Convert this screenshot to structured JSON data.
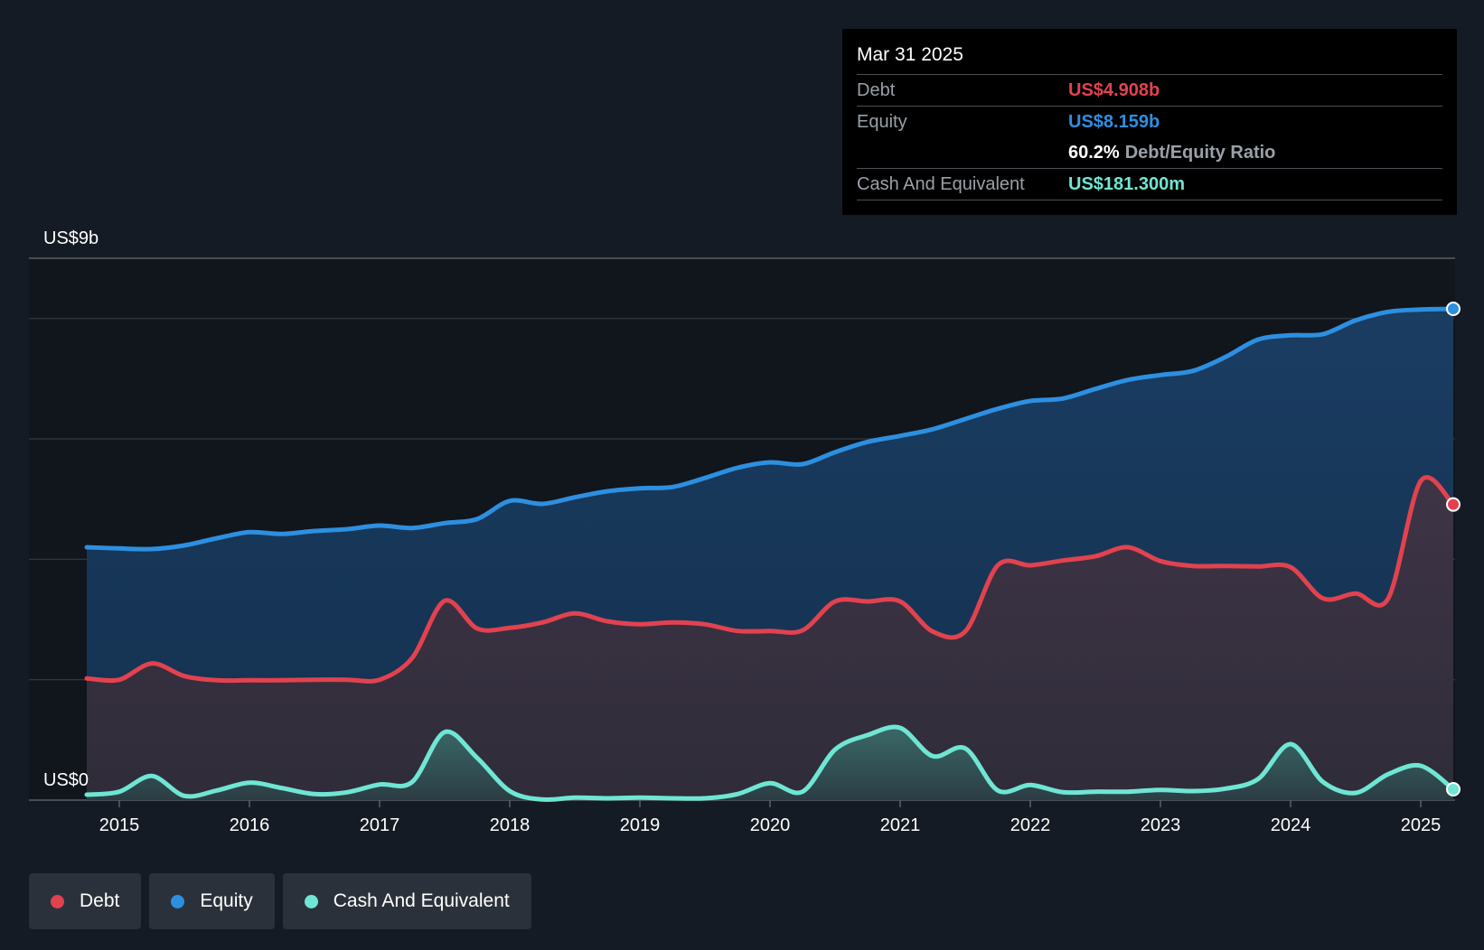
{
  "colors": {
    "background": "#151b24",
    "plot_background": "#11151c",
    "debt": "#e2424f",
    "equity": "#2d8fe0",
    "cash": "#6fe6d3",
    "grid": "#2e343c"
  },
  "tooltip": {
    "date": "Mar 31 2025",
    "debt_label": "Debt",
    "debt_value": "US$4.908b",
    "equity_label": "Equity",
    "equity_value": "US$8.159b",
    "ratio_value": "60.2%",
    "ratio_label": "Debt/Equity Ratio",
    "cash_label": "Cash And Equivalent",
    "cash_value": "US$181.300m"
  },
  "legend": {
    "debt": "Debt",
    "equity": "Equity",
    "cash": "Cash And Equivalent"
  },
  "chart_data": {
    "type": "area",
    "title": "",
    "xlabel": "",
    "ylabel": "",
    "ylim": [
      0,
      9
    ],
    "y_unit": "US$ billions",
    "y_tick_labels": {
      "top": "US$9b",
      "bottom": "US$0"
    },
    "y_gridlines": [
      0,
      2,
      4,
      6,
      8,
      9
    ],
    "xlim": [
      2014.75,
      2025.25
    ],
    "x_ticks": [
      2015,
      2016,
      2017,
      2018,
      2019,
      2020,
      2021,
      2022,
      2023,
      2024,
      2025
    ],
    "x_tick_labels": [
      "2015",
      "2016",
      "2017",
      "2018",
      "2019",
      "2020",
      "2021",
      "2022",
      "2023",
      "2024",
      "2025"
    ],
    "series": [
      {
        "name": "Equity",
        "color_key": "equity",
        "points": [
          [
            2014.75,
            4.2
          ],
          [
            2015.0,
            4.18
          ],
          [
            2015.25,
            4.17
          ],
          [
            2015.5,
            4.23
          ],
          [
            2015.75,
            4.35
          ],
          [
            2016.0,
            4.45
          ],
          [
            2016.25,
            4.42
          ],
          [
            2016.5,
            4.47
          ],
          [
            2016.75,
            4.5
          ],
          [
            2017.0,
            4.56
          ],
          [
            2017.25,
            4.52
          ],
          [
            2017.5,
            4.6
          ],
          [
            2017.75,
            4.67
          ],
          [
            2018.0,
            4.97
          ],
          [
            2018.25,
            4.92
          ],
          [
            2018.5,
            5.03
          ],
          [
            2018.75,
            5.13
          ],
          [
            2019.0,
            5.18
          ],
          [
            2019.25,
            5.2
          ],
          [
            2019.5,
            5.35
          ],
          [
            2019.75,
            5.52
          ],
          [
            2020.0,
            5.61
          ],
          [
            2020.25,
            5.58
          ],
          [
            2020.5,
            5.78
          ],
          [
            2020.75,
            5.95
          ],
          [
            2021.0,
            6.05
          ],
          [
            2021.25,
            6.16
          ],
          [
            2021.5,
            6.33
          ],
          [
            2021.75,
            6.5
          ],
          [
            2022.0,
            6.63
          ],
          [
            2022.25,
            6.67
          ],
          [
            2022.5,
            6.83
          ],
          [
            2022.75,
            6.98
          ],
          [
            2023.0,
            7.06
          ],
          [
            2023.25,
            7.13
          ],
          [
            2023.5,
            7.36
          ],
          [
            2023.75,
            7.65
          ],
          [
            2024.0,
            7.72
          ],
          [
            2024.25,
            7.74
          ],
          [
            2024.5,
            7.97
          ],
          [
            2024.75,
            8.11
          ],
          [
            2025.0,
            8.15
          ],
          [
            2025.25,
            8.16
          ]
        ]
      },
      {
        "name": "Debt",
        "color_key": "debt",
        "points": [
          [
            2014.75,
            2.02
          ],
          [
            2015.0,
            2.0
          ],
          [
            2015.25,
            2.27
          ],
          [
            2015.5,
            2.06
          ],
          [
            2015.75,
            1.99
          ],
          [
            2016.0,
            1.99
          ],
          [
            2016.25,
            1.99
          ],
          [
            2016.5,
            2.0
          ],
          [
            2016.75,
            2.0
          ],
          [
            2017.0,
            2.0
          ],
          [
            2017.25,
            2.36
          ],
          [
            2017.5,
            3.31
          ],
          [
            2017.75,
            2.85
          ],
          [
            2018.0,
            2.86
          ],
          [
            2018.25,
            2.95
          ],
          [
            2018.5,
            3.1
          ],
          [
            2018.75,
            2.97
          ],
          [
            2019.0,
            2.92
          ],
          [
            2019.25,
            2.95
          ],
          [
            2019.5,
            2.92
          ],
          [
            2019.75,
            2.81
          ],
          [
            2020.0,
            2.81
          ],
          [
            2020.25,
            2.82
          ],
          [
            2020.5,
            3.3
          ],
          [
            2020.75,
            3.3
          ],
          [
            2021.0,
            3.3
          ],
          [
            2021.25,
            2.8
          ],
          [
            2021.5,
            2.8
          ],
          [
            2021.75,
            3.9
          ],
          [
            2022.0,
            3.9
          ],
          [
            2022.25,
            3.98
          ],
          [
            2022.5,
            4.05
          ],
          [
            2022.75,
            4.2
          ],
          [
            2023.0,
            3.97
          ],
          [
            2023.25,
            3.89
          ],
          [
            2023.5,
            3.89
          ],
          [
            2023.75,
            3.88
          ],
          [
            2024.0,
            3.87
          ],
          [
            2024.25,
            3.35
          ],
          [
            2024.5,
            3.43
          ],
          [
            2024.75,
            3.35
          ],
          [
            2025.0,
            5.3
          ],
          [
            2025.25,
            4.91
          ]
        ]
      },
      {
        "name": "Cash And Equivalent",
        "color_key": "cash",
        "points": [
          [
            2014.75,
            0.09
          ],
          [
            2015.0,
            0.14
          ],
          [
            2015.25,
            0.4
          ],
          [
            2015.5,
            0.07
          ],
          [
            2015.75,
            0.16
          ],
          [
            2016.0,
            0.29
          ],
          [
            2016.25,
            0.2
          ],
          [
            2016.5,
            0.1
          ],
          [
            2016.75,
            0.13
          ],
          [
            2017.0,
            0.26
          ],
          [
            2017.25,
            0.3
          ],
          [
            2017.5,
            1.13
          ],
          [
            2017.75,
            0.7
          ],
          [
            2018.0,
            0.15
          ],
          [
            2018.25,
            0.01
          ],
          [
            2018.5,
            0.04
          ],
          [
            2018.75,
            0.03
          ],
          [
            2019.0,
            0.04
          ],
          [
            2019.25,
            0.03
          ],
          [
            2019.5,
            0.03
          ],
          [
            2019.75,
            0.1
          ],
          [
            2020.0,
            0.28
          ],
          [
            2020.25,
            0.14
          ],
          [
            2020.5,
            0.84
          ],
          [
            2020.75,
            1.08
          ],
          [
            2021.0,
            1.2
          ],
          [
            2021.25,
            0.73
          ],
          [
            2021.5,
            0.86
          ],
          [
            2021.75,
            0.16
          ],
          [
            2022.0,
            0.25
          ],
          [
            2022.25,
            0.13
          ],
          [
            2022.5,
            0.14
          ],
          [
            2022.75,
            0.14
          ],
          [
            2023.0,
            0.17
          ],
          [
            2023.25,
            0.15
          ],
          [
            2023.5,
            0.19
          ],
          [
            2023.75,
            0.35
          ],
          [
            2024.0,
            0.93
          ],
          [
            2024.25,
            0.3
          ],
          [
            2024.5,
            0.12
          ],
          [
            2024.75,
            0.43
          ],
          [
            2025.0,
            0.57
          ],
          [
            2025.25,
            0.18
          ]
        ]
      }
    ],
    "highlight_date": "Mar 31 2025"
  }
}
